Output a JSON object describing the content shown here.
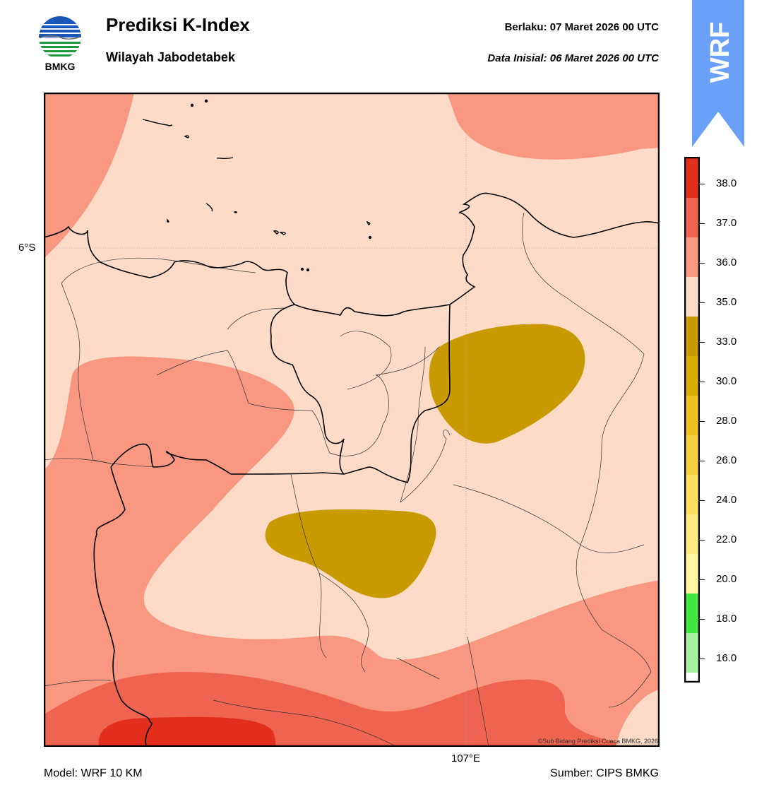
{
  "header": {
    "logo_text": "BMKG",
    "title": "Prediksi K-Index",
    "subtitle": "Wilayah Jabodetabek",
    "valid_label": "Berlaku:  07 Maret 2026 00 UTC",
    "init_label": "Data Inisial:  06 Maret 2026 00 UTC",
    "badge_text": "WRF"
  },
  "map": {
    "lat_label": "6°S",
    "lon_label": "107°E",
    "copyright": "©Sub Bidang Prediksi Cuaca BMKG, 2026",
    "fill_colors": {
      "35-36": "#fddbc7",
      "36-37": "#f99882",
      "37-38": "#ef6450",
      "38+": "#e2301d",
      "33-35": "#c9a000"
    }
  },
  "colorbar": {
    "bins": [
      {
        "lo": 15.0,
        "hi": 16.0,
        "color": "#ffffff"
      },
      {
        "lo": 16.0,
        "hi": 18.0,
        "color": "#a6f0a0"
      },
      {
        "lo": 18.0,
        "hi": 20.0,
        "color": "#41e641"
      },
      {
        "lo": 20.0,
        "hi": 22.0,
        "color": "#fff4a0"
      },
      {
        "lo": 22.0,
        "hi": 24.0,
        "color": "#ffeb80"
      },
      {
        "lo": 24.0,
        "hi": 26.0,
        "color": "#fbe060"
      },
      {
        "lo": 26.0,
        "hi": 28.0,
        "color": "#f5d040"
      },
      {
        "lo": 28.0,
        "hi": 30.0,
        "color": "#eec020"
      },
      {
        "lo": 30.0,
        "hi": 33.0,
        "color": "#d9ad00"
      },
      {
        "lo": 33.0,
        "hi": 35.0,
        "color": "#c99a00"
      },
      {
        "lo": 35.0,
        "hi": 36.0,
        "color": "#fddbc7"
      },
      {
        "lo": 36.0,
        "hi": 37.0,
        "color": "#f99882"
      },
      {
        "lo": 37.0,
        "hi": 38.0,
        "color": "#ef6450"
      },
      {
        "lo": 38.0,
        "hi": 39.0,
        "color": "#e2301d"
      }
    ],
    "tick_labels": [
      "38.0",
      "37.0",
      "36.0",
      "35.0",
      "33.0",
      "30.0",
      "28.0",
      "26.0",
      "24.0",
      "22.0",
      "20.0",
      "18.0",
      "16.0"
    ]
  },
  "footer": {
    "model": "Model: WRF 10 KM",
    "source": "Sumber: CIPS BMKG"
  }
}
